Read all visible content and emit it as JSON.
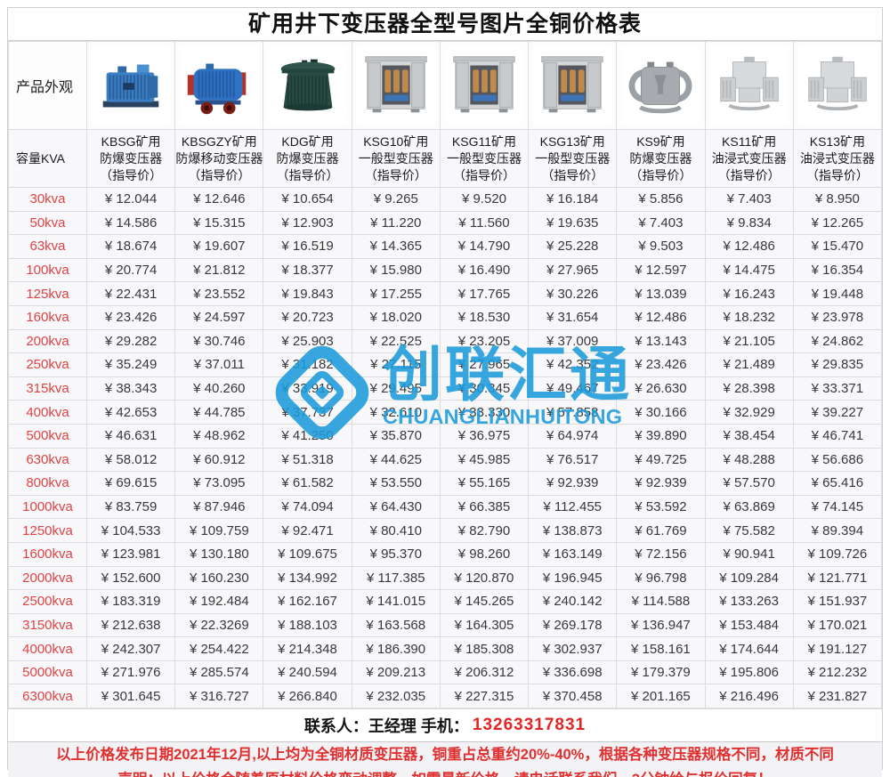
{
  "title": "矿用井下变压器全型号图片全铜价格表",
  "table": {
    "currency": "¥",
    "corner": {
      "appearance": "产品外观",
      "capacity": "容量KVA"
    },
    "columns": [
      {
        "lines": [
          "KBSG矿用",
          "防爆变压器",
          "（指导价）"
        ],
        "image": "kbsg-blue-ribbed-transformer"
      },
      {
        "lines": [
          "KBSGZY矿用",
          "防爆移动变压器",
          "（指导价）"
        ],
        "image": "kbsgzy-mobile-transformer-wheels"
      },
      {
        "lines": [
          "KDG矿用",
          "防爆变压器",
          "（指导价）"
        ],
        "image": "kdg-round-green-transformer"
      },
      {
        "lines": [
          "KSG10矿用",
          "一般型变压器",
          "（指导价）"
        ],
        "image": "ksg-steel-cabinet-coils"
      },
      {
        "lines": [
          "KSG11矿用",
          "一般型变压器",
          "（指导价）"
        ],
        "image": "ksg-steel-cabinet-coils"
      },
      {
        "lines": [
          "KSG13矿用",
          "一般型变压器",
          "（指导价）"
        ],
        "image": "ksg-steel-cabinet-coils"
      },
      {
        "lines": [
          "KS9矿用",
          "防爆变压器",
          "（指导价）"
        ],
        "image": "ks9-gray-transformer-loops"
      },
      {
        "lines": [
          "KS11矿用",
          "油浸式变压器",
          "（指导价）"
        ],
        "image": "ks-oil-immersed-radiators"
      },
      {
        "lines": [
          "KS13矿用",
          "油浸式变压器",
          "（指导价）"
        ],
        "image": "ks-oil-immersed-radiators"
      }
    ],
    "rows": [
      {
        "capacity": "30kva",
        "prices": [
          "12.044",
          "12.646",
          "10.654",
          "9.265",
          "9.520",
          "16.184",
          "5.856",
          "7.403",
          "8.950"
        ]
      },
      {
        "capacity": "50kva",
        "prices": [
          "14.586",
          "15.315",
          "12.903",
          "11.220",
          "11.560",
          "19.635",
          "7.403",
          "9.834",
          "12.265"
        ]
      },
      {
        "capacity": "63kva",
        "prices": [
          "18.674",
          "19.607",
          "16.519",
          "14.365",
          "14.790",
          "25.228",
          "9.503",
          "12.486",
          "15.470"
        ]
      },
      {
        "capacity": "100kva",
        "prices": [
          "20.774",
          "21.812",
          "18.377",
          "15.980",
          "16.490",
          "27.965",
          "12.597",
          "14.475",
          "16.354"
        ]
      },
      {
        "capacity": "125kva",
        "prices": [
          "22.431",
          "23.552",
          "19.843",
          "17.255",
          "17.765",
          "30.226",
          "13.039",
          "16.243",
          "19.448"
        ]
      },
      {
        "capacity": "160kva",
        "prices": [
          "23.426",
          "24.597",
          "20.723",
          "18.020",
          "18.530",
          "31.654",
          "12.486",
          "18.232",
          "23.978"
        ]
      },
      {
        "capacity": "200kva",
        "prices": [
          "29.282",
          "30.746",
          "25.903",
          "22.525",
          "23.205",
          "37.009",
          "13.143",
          "21.105",
          "24.862"
        ]
      },
      {
        "capacity": "250kva",
        "prices": [
          "35.249",
          "37.011",
          "31.182",
          "27.115",
          "27.965",
          "42.352",
          "23.426",
          "21.489",
          "29.835"
        ]
      },
      {
        "capacity": "315kva",
        "prices": [
          "38.343",
          "40.260",
          "33.919",
          "29.495",
          "30.345",
          "49.467",
          "26.630",
          "28.398",
          "33.371"
        ]
      },
      {
        "capacity": "400kva",
        "prices": [
          "42.653",
          "44.785",
          "37.737",
          "32.610",
          "33.330",
          "57.858",
          "30.166",
          "32.929",
          "39.227"
        ]
      },
      {
        "capacity": "500kva",
        "prices": [
          "46.631",
          "48.962",
          "41.250",
          "35.870",
          "36.975",
          "64.974",
          "39.890",
          "38.454",
          "46.741"
        ]
      },
      {
        "capacity": "630kva",
        "prices": [
          "58.012",
          "60.912",
          "51.318",
          "44.625",
          "45.985",
          "76.517",
          "49.725",
          "48.288",
          "56.686"
        ]
      },
      {
        "capacity": "800kva",
        "prices": [
          "69.615",
          "73.095",
          "61.582",
          "53.550",
          "55.165",
          "92.939",
          "92.939",
          "57.570",
          "65.416"
        ]
      },
      {
        "capacity": "1000kva",
        "prices": [
          "83.759",
          "87.946",
          "74.094",
          "64.430",
          "66.385",
          "112.455",
          "53.592",
          "63.869",
          "74.145"
        ]
      },
      {
        "capacity": "1250kva",
        "prices": [
          "104.533",
          "109.759",
          "92.471",
          "80.410",
          "82.790",
          "138.873",
          "61.769",
          "75.582",
          "89.394"
        ]
      },
      {
        "capacity": "1600kva",
        "prices": [
          "123.981",
          "130.180",
          "109.675",
          "95.370",
          "98.260",
          "163.149",
          "72.156",
          "90.941",
          "109.726"
        ]
      },
      {
        "capacity": "2000kva",
        "prices": [
          "152.600",
          "160.230",
          "134.992",
          "117.385",
          "120.870",
          "196.945",
          "96.798",
          "109.284",
          "121.771"
        ]
      },
      {
        "capacity": "2500kva",
        "prices": [
          "183.319",
          "192.484",
          "162.167",
          "141.015",
          "145.265",
          "240.142",
          "114.588",
          "133.263",
          "151.937"
        ]
      },
      {
        "capacity": "3150kva",
        "prices": [
          "212.638",
          "22.3269",
          "188.103",
          "163.568",
          "164.305",
          "269.178",
          "136.947",
          "153.484",
          "170.021"
        ]
      },
      {
        "capacity": "4000kva",
        "prices": [
          "242.307",
          "254.422",
          "214.348",
          "186.390",
          "185.308",
          "302.937",
          "158.161",
          "174.644",
          "191.127"
        ]
      },
      {
        "capacity": "5000kva",
        "prices": [
          "271.976",
          "285.574",
          "240.594",
          "209.213",
          "206.312",
          "336.698",
          "179.379",
          "195.806",
          "212.232"
        ]
      },
      {
        "capacity": "6300kva",
        "prices": [
          "301.645",
          "316.727",
          "266.840",
          "232.035",
          "227.315",
          "370.458",
          "201.165",
          "216.496",
          "231.827"
        ]
      }
    ]
  },
  "watermark": {
    "cn": "创联汇通",
    "en": "CHUANGLIANHUITONG",
    "color": "#1b9bdb"
  },
  "contact": {
    "label": "联系人：王经理  手机：",
    "phone": "13263317831"
  },
  "disclaimer": {
    "line1": "以上价格发布日期2021年12月,以上均为全铜材质变压器，铜重占总重约20%-40%，根据各种变压器规格不同，材质不同",
    "line2": "声明：以上价格会随着原材料价格变动调整，如需最新价格，请电话联系我们，3分钟给与报价回复！"
  },
  "colors": {
    "capacity_red": "#e04343",
    "price_text": "#38383a",
    "watermark_blue": "#1b9bdb",
    "phone_red": "#e42525",
    "disclaimer_red": "#e03030"
  }
}
